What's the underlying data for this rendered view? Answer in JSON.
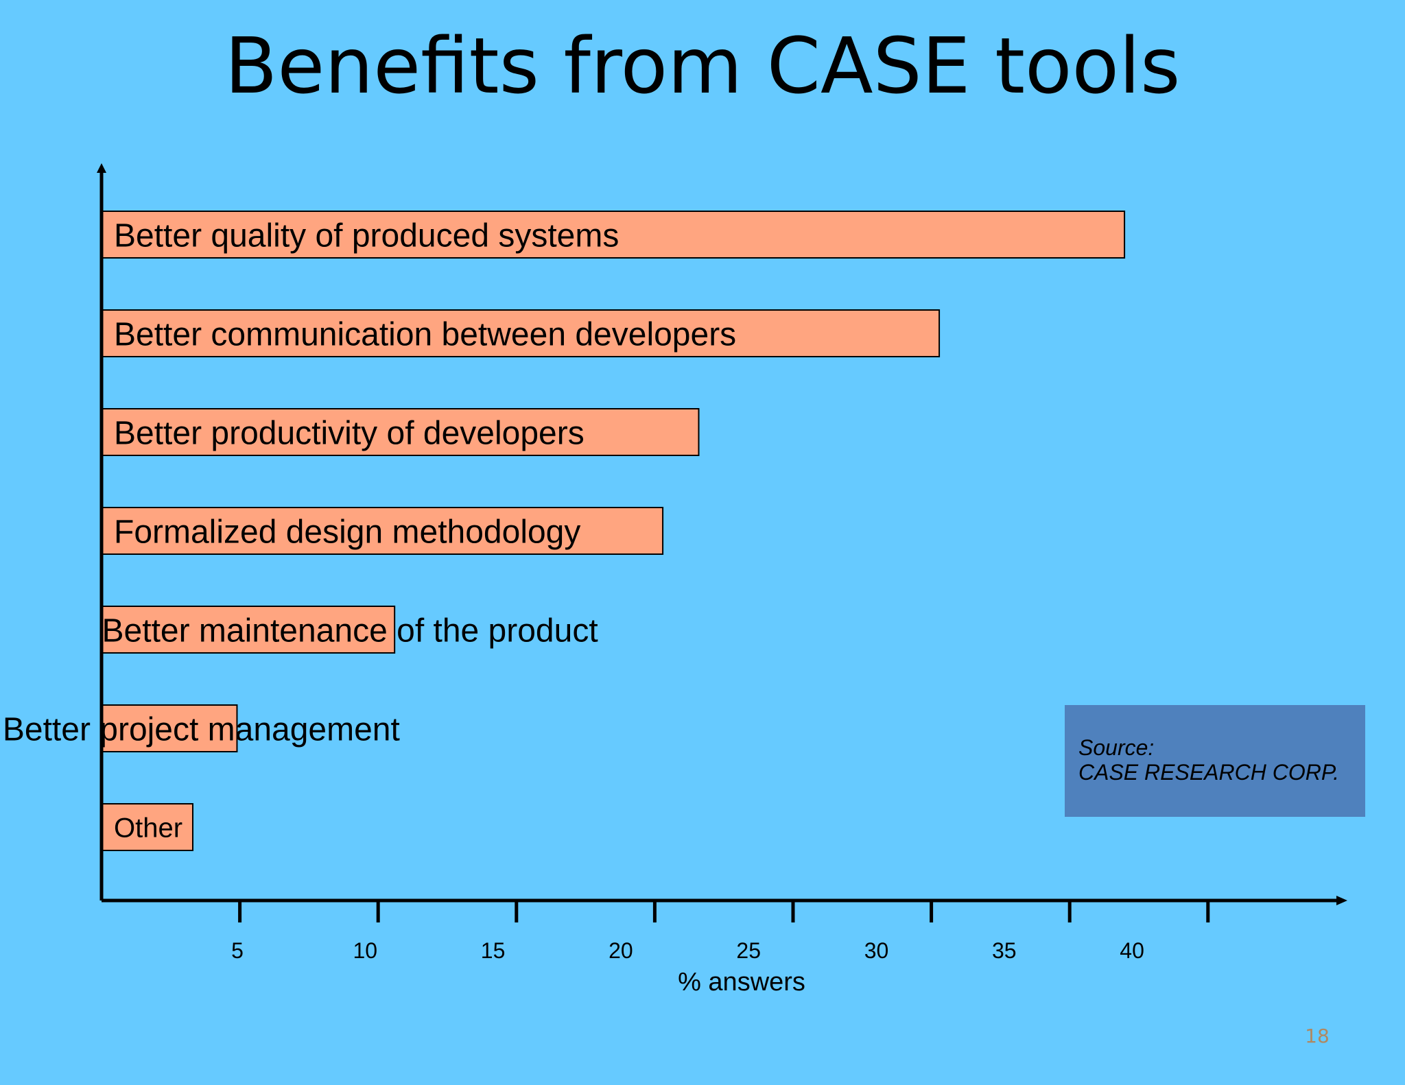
{
  "slide": {
    "title": "Benefits from CASE tools",
    "page_number": "18"
  },
  "source": {
    "label": "Source:",
    "name": "CASE RESEARCH CORP."
  },
  "colors": {
    "background": "#66CAFF",
    "bar_fill": "#FFA580",
    "source_box": "#4F81BD",
    "page_number": "#B08860"
  },
  "chart_data": {
    "type": "bar",
    "orientation": "horizontal",
    "categories": [
      "Better quality of produced systems",
      "Better communication between developers",
      "Better productivity of developers",
      "Formalized design methodology",
      "Better maintenance of the product",
      "Better project management",
      "Other"
    ],
    "values": [
      37,
      30.3,
      21.6,
      20.3,
      10.6,
      4.9,
      3.3
    ],
    "xlabel": "% answers",
    "ylabel": "",
    "xticks": [
      5,
      10,
      15,
      20,
      25,
      30,
      35,
      40
    ],
    "xlim": [
      0,
      45
    ],
    "grid": false
  }
}
